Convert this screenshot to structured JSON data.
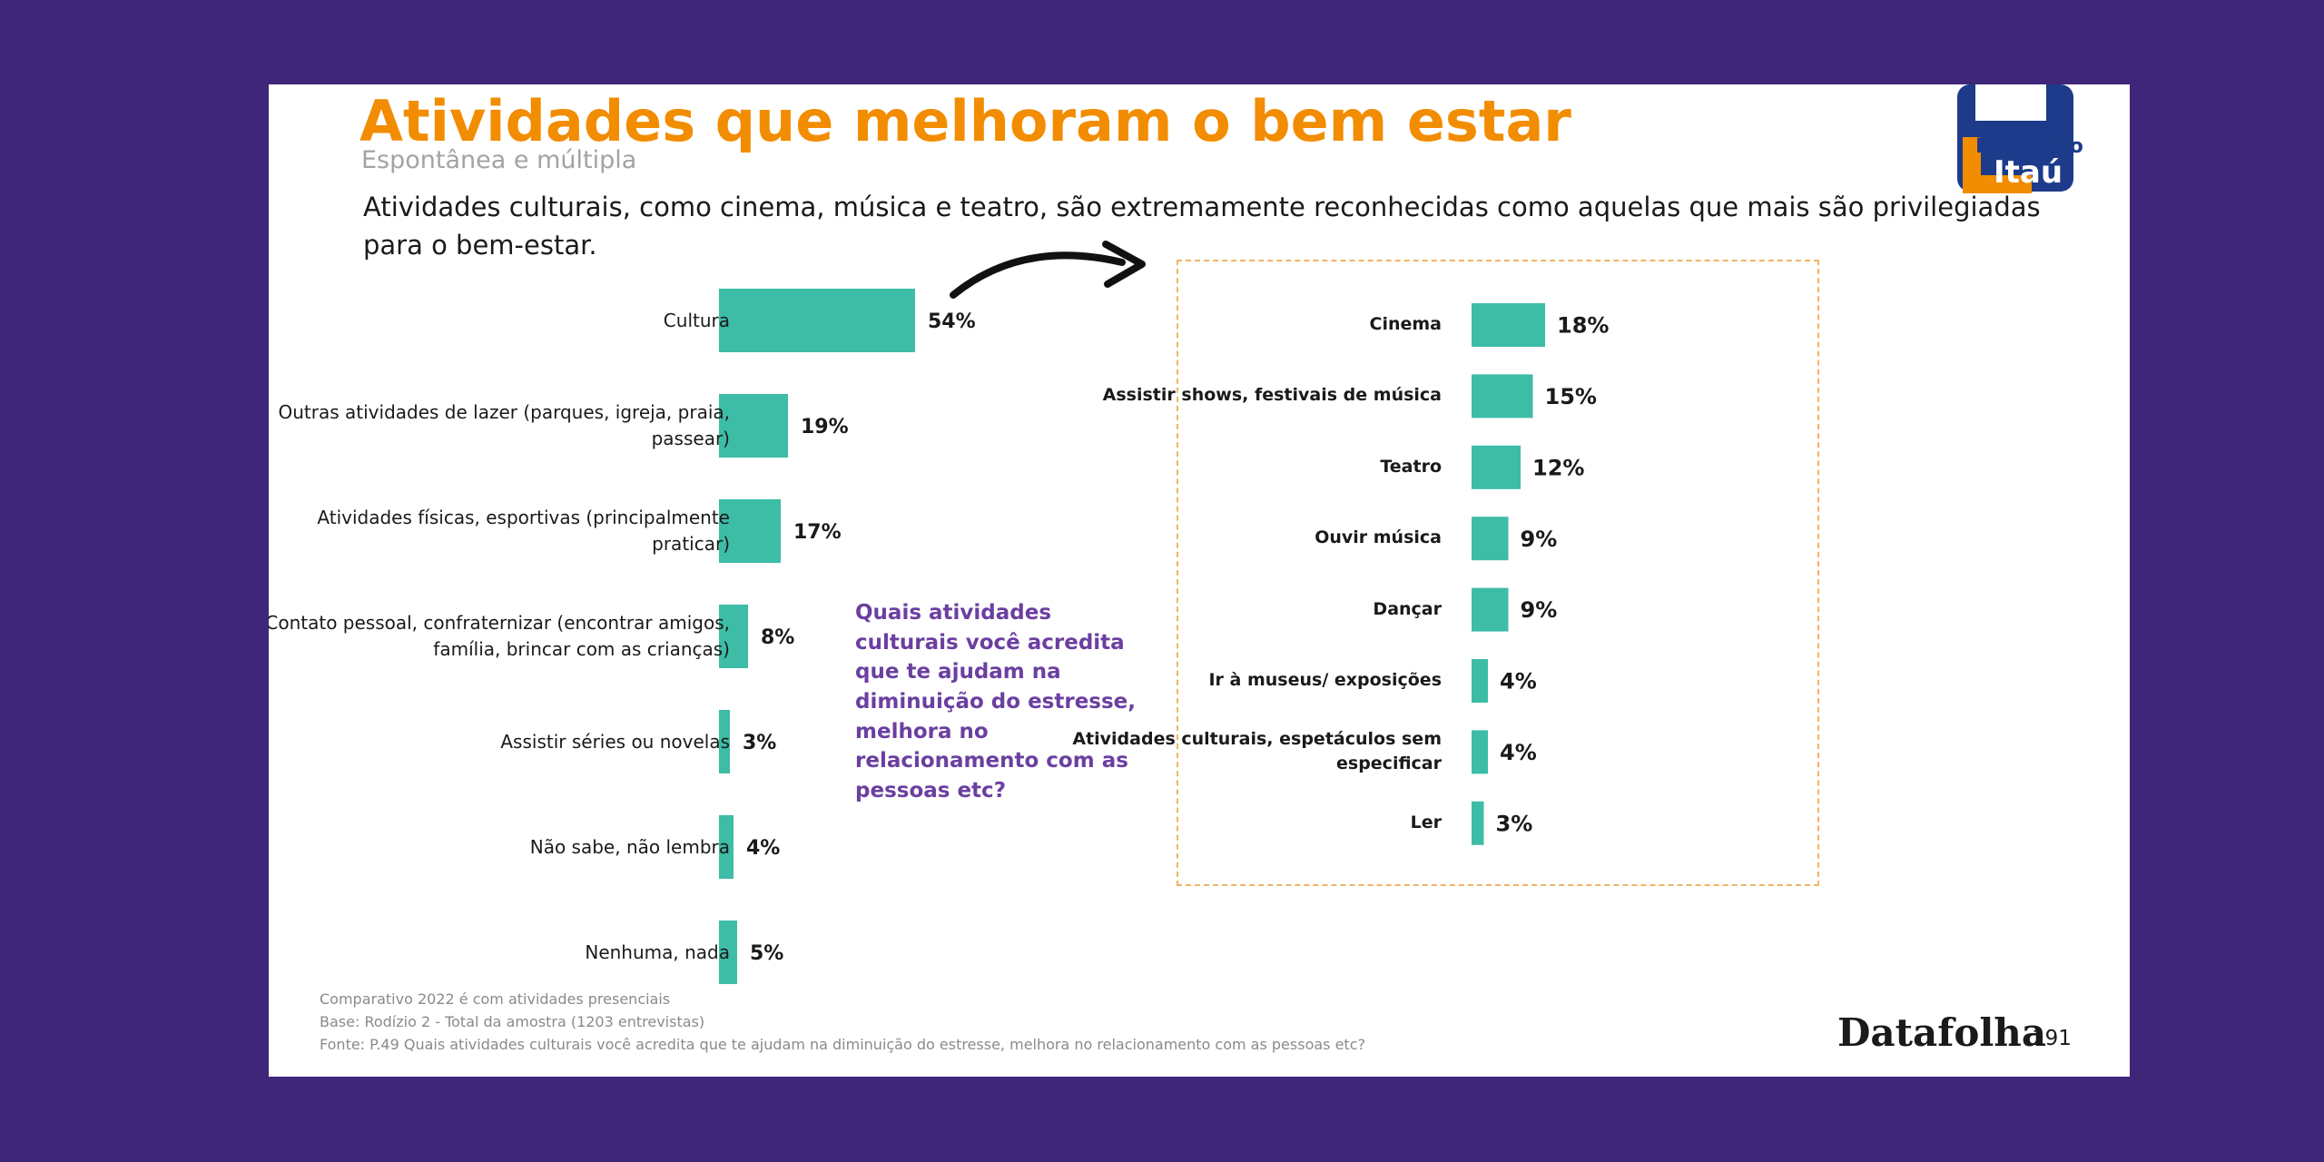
{
  "header": {
    "title": "Atividades que melhoram o bem estar",
    "subtitle": "Espontânea e múltipla",
    "description": "Atividades culturais, como cinema, música e teatro, são extremamente reconhecidas como aquelas que mais são privilegiadas para o bem-estar."
  },
  "logo": {
    "line1": "Fundação",
    "line2": "Itaú"
  },
  "callout": "Quais atividades culturais você acredita que te ajudam na diminuição do estresse, melhora no relacionamento com as pessoas etc?",
  "footer": {
    "notes": [
      "Comparativo 2022 é com atividades presenciais",
      "Base: Rodízio 2 - Total da amostra (1203 entrevistas)",
      "Fonte: P.49 Quais atividades culturais você acredita que te ajudam na diminuição do estresse, melhora no relacionamento com as pessoas etc?"
    ],
    "brand": "Datafolha",
    "page": "191"
  },
  "colors": {
    "bar": "#3dbca6",
    "accent": "#f28c00",
    "callout": "#6b3fa0",
    "background": "#3f2679"
  },
  "chart_data": [
    {
      "type": "bar",
      "orientation": "horizontal",
      "categories": [
        "Cultura",
        "Outras atividades de lazer (parques, igreja, praia, passear)",
        "Atividades físicas, esportivas (principalmente praticar)",
        "Contato pessoal, confraternizar (encontrar amigos, família, brincar com as crianças)",
        "Assistir séries ou novelas",
        "Não sabe, não lembra",
        "Nenhuma, nada"
      ],
      "values": [
        54,
        19,
        17,
        8,
        3,
        4,
        5
      ],
      "value_labels": [
        "54%",
        "19%",
        "17%",
        "8%",
        "3%",
        "4%",
        "5%"
      ],
      "unit": "%"
    },
    {
      "type": "bar",
      "orientation": "horizontal",
      "categories": [
        "Cinema",
        "Assistir shows, festivais de música",
        "Teatro",
        "Ouvir música",
        "Dançar",
        "Ir à museus/ exposições",
        "Atividades culturais, espetáculos sem especificar",
        "Ler"
      ],
      "values": [
        18,
        15,
        12,
        9,
        9,
        4,
        4,
        3
      ],
      "value_labels": [
        "18%",
        "15%",
        "12%",
        "9%",
        "9%",
        "4%",
        "4%",
        "3%"
      ],
      "unit": "%"
    }
  ]
}
